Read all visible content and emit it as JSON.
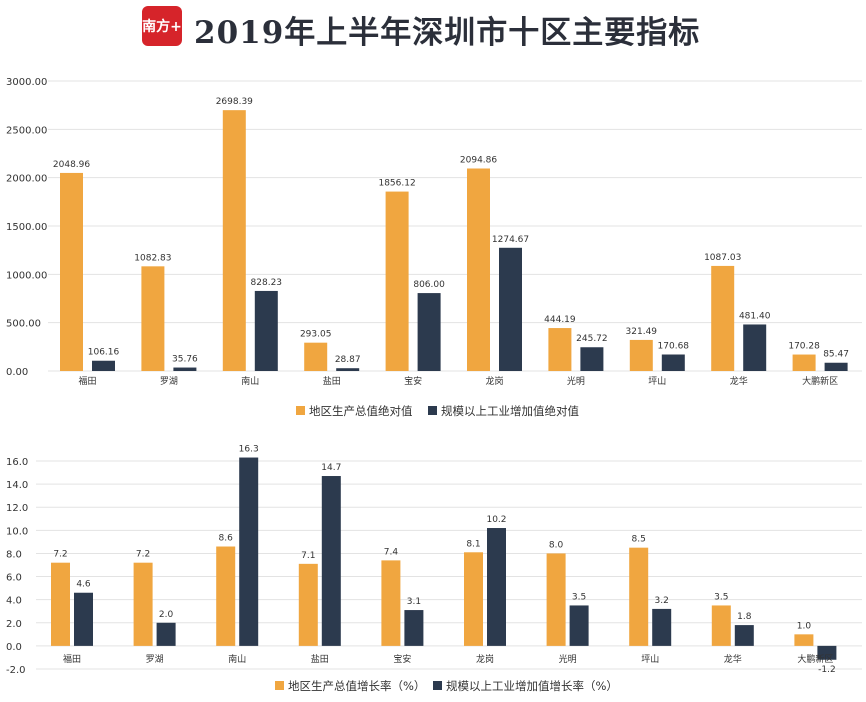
{
  "header": {
    "logo_text": "南方+",
    "title": "2019年上半年深圳市十区主要指标"
  },
  "colors": {
    "gdp": "#f0a640",
    "industry": "#2c3a4e",
    "grid": "#e3e3e3",
    "axis_text": "#333333"
  },
  "chart_data": [
    {
      "type": "bar",
      "categories": [
        "福田",
        "罗湖",
        "南山",
        "盐田",
        "宝安",
        "龙岗",
        "光明",
        "坪山",
        "龙华",
        "大鹏新区"
      ],
      "series": [
        {
          "name": "地区生产总值绝对值",
          "values": [
            2048.96,
            1082.83,
            2698.39,
            293.05,
            1856.12,
            2094.86,
            444.19,
            321.49,
            1087.03,
            170.28
          ]
        },
        {
          "name": "规模以上工业增加值绝对值",
          "values": [
            106.16,
            35.76,
            828.23,
            28.87,
            806.0,
            1274.67,
            245.72,
            170.68,
            481.4,
            85.47
          ]
        }
      ],
      "yticks": [
        "0.00",
        "500.00",
        "1000.00",
        "1500.00",
        "2000.00",
        "2500.00",
        "3000.00"
      ],
      "ylim": [
        0,
        3000
      ],
      "legend_position": "bottom",
      "grid": true
    },
    {
      "type": "bar",
      "categories": [
        "福田",
        "罗湖",
        "南山",
        "盐田",
        "宝安",
        "龙岗",
        "光明",
        "坪山",
        "龙华",
        "大鹏新区"
      ],
      "series": [
        {
          "name": "地区生产总值增长率（%）",
          "values": [
            7.2,
            7.2,
            8.6,
            7.1,
            7.4,
            8.1,
            8.0,
            8.5,
            3.5,
            1.0
          ]
        },
        {
          "name": "规模以上工业增加值增长率（%）",
          "values": [
            4.6,
            2.0,
            16.3,
            14.7,
            3.1,
            10.2,
            3.5,
            3.2,
            1.8,
            -1.2
          ]
        }
      ],
      "yticks": [
        "-2.0",
        "0.0",
        "2.0",
        "4.0",
        "6.0",
        "8.0",
        "10.0",
        "12.0",
        "14.0",
        "16.0"
      ],
      "ylim": [
        -2,
        16
      ],
      "legend_position": "bottom",
      "grid": true
    }
  ]
}
